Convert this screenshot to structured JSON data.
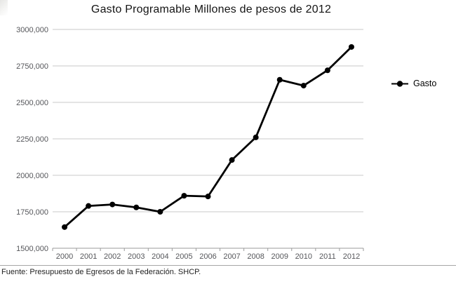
{
  "chart_data": {
    "type": "line",
    "title": "Gasto Programable Millones de pesos de 2012",
    "categories": [
      "2000",
      "2001",
      "2002",
      "2003",
      "2004",
      "2005",
      "2006",
      "2007",
      "2008",
      "2009",
      "2010",
      "2011",
      "2012"
    ],
    "series": [
      {
        "name": "Gasto",
        "values": [
          1645000,
          1790000,
          1800000,
          1780000,
          1750000,
          1860000,
          1855000,
          2105000,
          2260000,
          2655000,
          2615000,
          2720000,
          2880000
        ]
      }
    ],
    "xlabel": "",
    "ylabel": "",
    "ylim": [
      1500000,
      3000000
    ],
    "yticks": [
      1500000,
      1750000,
      2000000,
      2250000,
      2500000,
      2750000,
      3000000
    ],
    "ytick_labels": [
      "1500,000",
      "1750,000",
      "2000,000",
      "2250,000",
      "2500,000",
      "2750,000",
      "3000,000"
    ],
    "grid": "horizontal",
    "legend": {
      "position": "right",
      "label": "Gasto"
    },
    "colors": {
      "line": "#000000",
      "marker": "#000000",
      "grid": "#c9c9c9",
      "axis": "#9a9a9a",
      "axis_text": "#55565a"
    }
  },
  "footer": {
    "source": "Fuente: Presupuesto de Egresos de la Federación. SHCP."
  }
}
